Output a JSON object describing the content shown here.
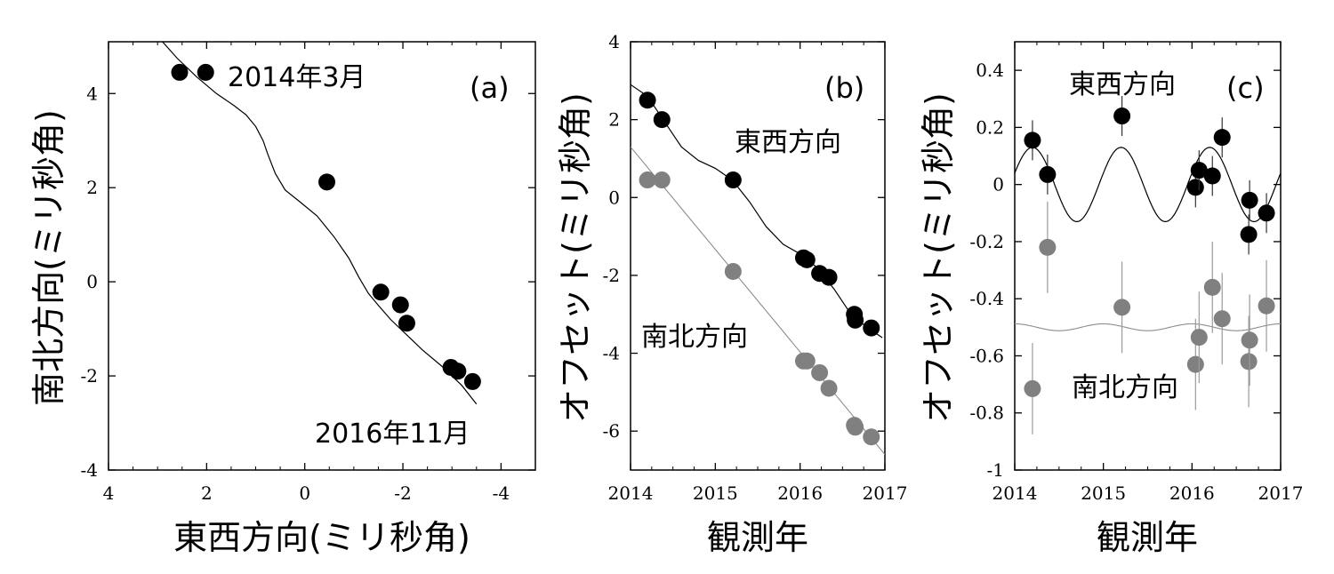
{
  "colors": {
    "black_series": "#000000",
    "gray_series": "#808080",
    "gray_line": "#8c8c8c"
  },
  "chart_data": [
    {
      "type": "scatter",
      "panel_label": "(a)",
      "xlabel": "東西方向(ミリ秒角)",
      "ylabel": "南北方向(ミリ秒角)",
      "xlim": [
        4,
        -4.7
      ],
      "ylim": [
        -4,
        5.1
      ],
      "xticks": [
        4,
        2,
        0,
        -2,
        -4
      ],
      "xtick_labels": [
        "4",
        "2",
        "0",
        "-2",
        "-4"
      ],
      "yticks": [
        4,
        2,
        0,
        -2,
        -4
      ],
      "ytick_labels": [
        "4",
        "2",
        "0",
        "-2",
        "-4"
      ],
      "annotations": [
        "2014年3月",
        "2016年11月"
      ],
      "series": [
        {
          "color": "#000000",
          "x": [
            2.55,
            2.02,
            -0.45,
            -1.55,
            -1.95,
            -2.08,
            -2.98,
            -3.12,
            -3.42
          ],
          "y": [
            4.45,
            4.45,
            2.12,
            -0.22,
            -0.49,
            -0.88,
            -1.82,
            -1.9,
            -2.12
          ]
        }
      ],
      "model_curve": {
        "x": [
          2.9,
          2.6,
          2.2,
          1.8,
          1.45,
          1.2,
          1.0,
          0.85,
          0.75,
          0.6,
          0.4,
          0.1,
          -0.25,
          -0.6,
          -0.9,
          -1.1,
          -1.3,
          -1.5,
          -1.75,
          -2.05,
          -2.4,
          -2.8,
          -3.2,
          -3.5
        ],
        "y": [
          5.1,
          4.75,
          4.35,
          4.0,
          3.75,
          3.55,
          3.3,
          3.0,
          2.7,
          2.3,
          1.95,
          1.7,
          1.4,
          0.95,
          0.5,
          0.1,
          -0.25,
          -0.5,
          -0.8,
          -1.1,
          -1.45,
          -1.8,
          -2.2,
          -2.6
        ]
      }
    },
    {
      "type": "scatter",
      "panel_label": "(b)",
      "xlabel": "観測年",
      "ylabel": "オフセット(ミリ秒角)",
      "xlim": [
        2014,
        2017
      ],
      "ylim": [
        -7,
        4
      ],
      "xticks": [
        2014,
        2015,
        2016,
        2017
      ],
      "xtick_labels": [
        "2014",
        "2015",
        "2016",
        "2017"
      ],
      "yticks": [
        4,
        2,
        0,
        -2,
        -4,
        -6
      ],
      "ytick_labels": [
        "4",
        "2",
        "0",
        "-2",
        "-4",
        "-6"
      ],
      "series": [
        {
          "name": "東西方向",
          "color": "#000000",
          "x": [
            2014.2,
            2014.37,
            2015.21,
            2016.04,
            2016.08,
            2016.23,
            2016.34,
            2016.64,
            2016.65,
            2016.84
          ],
          "y": [
            2.5,
            2.0,
            0.45,
            -1.55,
            -1.6,
            -1.95,
            -2.05,
            -3.0,
            -3.15,
            -3.35
          ]
        },
        {
          "name": "南北方向",
          "color": "#808080",
          "x": [
            2014.2,
            2014.37,
            2015.21,
            2016.04,
            2016.08,
            2016.23,
            2016.34,
            2016.64,
            2016.65,
            2016.84
          ],
          "y": [
            0.45,
            0.45,
            -1.9,
            -4.2,
            -4.2,
            -4.5,
            -4.9,
            -5.85,
            -5.9,
            -6.15
          ]
        }
      ],
      "model_curves": [
        {
          "color": "#000000",
          "x": [
            2014,
            2014.2,
            2014.4,
            2014.6,
            2014.8,
            2015.0,
            2015.2,
            2015.4,
            2015.6,
            2015.8,
            2016.0,
            2016.2,
            2016.4,
            2016.6,
            2016.8,
            2016.97
          ],
          "y": [
            2.9,
            2.6,
            1.95,
            1.3,
            0.95,
            0.75,
            0.45,
            -0.1,
            -0.75,
            -1.2,
            -1.45,
            -1.8,
            -2.35,
            -3.0,
            -3.35,
            -3.6
          ]
        },
        {
          "color": "#8c8c8c",
          "x": [
            2014,
            2017
          ],
          "y": [
            1.3,
            -6.6
          ]
        }
      ]
    },
    {
      "type": "scatter",
      "panel_label": "(c)",
      "xlabel": "観測年",
      "ylabel": "オフセット(ミリ秒角)",
      "xlim": [
        2014,
        2017
      ],
      "ylim": [
        -1,
        0.5
      ],
      "xticks": [
        2014,
        2015,
        2016,
        2017
      ],
      "xtick_labels": [
        "2014",
        "2015",
        "2016",
        "2017"
      ],
      "yticks": [
        0.4,
        0.2,
        0,
        -0.2,
        -0.4,
        -0.6,
        -0.8,
        -1
      ],
      "ytick_labels": [
        "0.4",
        "0.2",
        "0",
        "-0.2",
        "-0.4",
        "-0.6",
        "-0.8",
        "-1"
      ],
      "series": [
        {
          "name": "東西方向",
          "color": "#000000",
          "x": [
            2014.2,
            2014.37,
            2015.21,
            2016.04,
            2016.08,
            2016.23,
            2016.34,
            2016.64,
            2016.65,
            2016.84
          ],
          "y": [
            0.155,
            0.035,
            0.24,
            -0.01,
            0.05,
            0.03,
            0.165,
            -0.175,
            -0.055,
            -0.1
          ],
          "err": [
            0.07,
            0.07,
            0.07,
            0.07,
            0.07,
            0.07,
            0.07,
            0.07,
            0.07,
            0.07
          ]
        },
        {
          "name": "南北方向",
          "color": "#808080",
          "x": [
            2014.2,
            2014.37,
            2015.21,
            2016.04,
            2016.08,
            2016.23,
            2016.34,
            2016.64,
            2016.65,
            2016.84
          ],
          "y": [
            -0.715,
            -0.22,
            -0.43,
            -0.63,
            -0.535,
            -0.36,
            -0.47,
            -0.62,
            -0.545,
            -0.425
          ],
          "err": [
            0.16,
            0.16,
            0.16,
            0.16,
            0.16,
            0.16,
            0.16,
            0.16,
            0.16,
            0.16
          ]
        }
      ],
      "model_curves": [
        {
          "color": "#000000",
          "form": "sinusoid",
          "period": 1.0,
          "amplitude": 0.13,
          "phase_peak": 2015.2,
          "offset": 0.0
        },
        {
          "color": "#8c8c8c",
          "form": "sinusoid",
          "period": 1.0,
          "amplitude": 0.012,
          "phase_peak": 2015.0,
          "offset": -0.5
        }
      ]
    }
  ]
}
